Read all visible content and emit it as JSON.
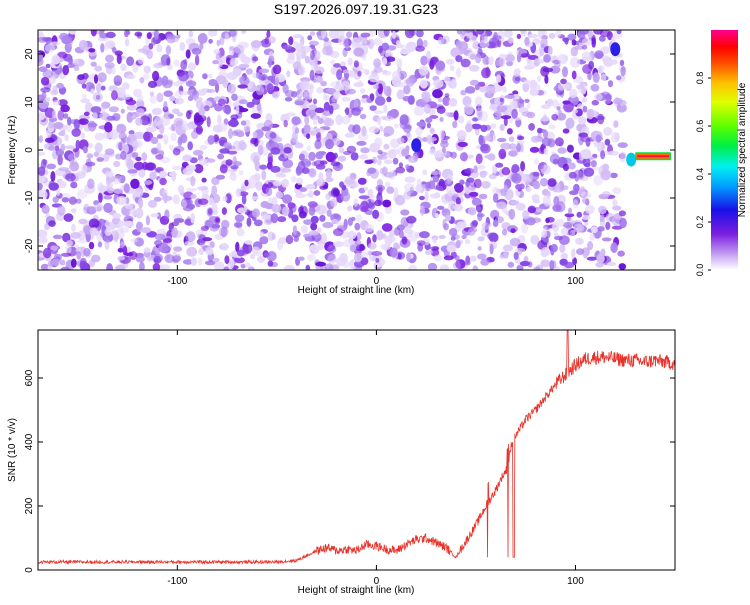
{
  "title": "S197.2026.097.19.31.G23",
  "colors": {
    "accent": "#7b1fe0",
    "line": "#e8322a",
    "axis": "#000000"
  },
  "chart_data": [
    {
      "type": "heatmap",
      "name": "spectrogram",
      "xlabel": "Height of straight line (km)",
      "ylabel": "Frequency (Hz)",
      "xlim": [
        -170,
        150
      ],
      "ylim": [
        -25,
        25
      ],
      "xticks": [
        -100,
        0,
        100
      ],
      "yticks": [
        -20,
        -10,
        0,
        10,
        20
      ],
      "colorbar": {
        "label": "Normalized spectral amplitude",
        "range": [
          0,
          1
        ],
        "ticks": [
          0.0,
          0.2,
          0.4,
          0.6,
          0.8
        ]
      },
      "features": [
        {
          "x": 20,
          "y": 1,
          "value": 0.3,
          "label": "bright blob"
        },
        {
          "x": 120,
          "y": 21,
          "value": 0.3,
          "label": "bright blob"
        },
        {
          "x": 128,
          "y": -2,
          "value": 0.45,
          "label": "bright blob"
        },
        {
          "x_start": 130,
          "x_end": 148,
          "y": -1.3,
          "value": 1.0,
          "label": "persistent tone"
        }
      ]
    },
    {
      "type": "line",
      "name": "snr",
      "xlabel": "Height of straight line (km)",
      "ylabel": "SNR (10 * v/v)",
      "xlim": [
        -170,
        150
      ],
      "ylim": [
        0,
        750
      ],
      "xticks": [
        -100,
        0,
        100
      ],
      "yticks": [
        0,
        200,
        400,
        600
      ],
      "x": [
        -170,
        -150,
        -130,
        -110,
        -90,
        -70,
        -50,
        -40,
        -35,
        -30,
        -25,
        -20,
        -15,
        -10,
        -5,
        0,
        5,
        10,
        15,
        20,
        25,
        30,
        35,
        40,
        45,
        50,
        55,
        60,
        63,
        66,
        68,
        70,
        75,
        80,
        85,
        90,
        95,
        100,
        105,
        110,
        115,
        120,
        125,
        130,
        135,
        140,
        145,
        150
      ],
      "values": [
        25,
        25,
        25,
        25,
        25,
        25,
        25,
        30,
        45,
        60,
        70,
        60,
        65,
        60,
        80,
        75,
        65,
        60,
        80,
        95,
        100,
        85,
        70,
        40,
        90,
        140,
        200,
        250,
        290,
        320,
        400,
        420,
        470,
        500,
        540,
        580,
        610,
        640,
        660,
        665,
        665,
        660,
        655,
        655,
        650,
        655,
        650,
        645
      ],
      "series": [
        {
          "name": "SNR",
          "color": "#e8322a"
        }
      ]
    }
  ]
}
